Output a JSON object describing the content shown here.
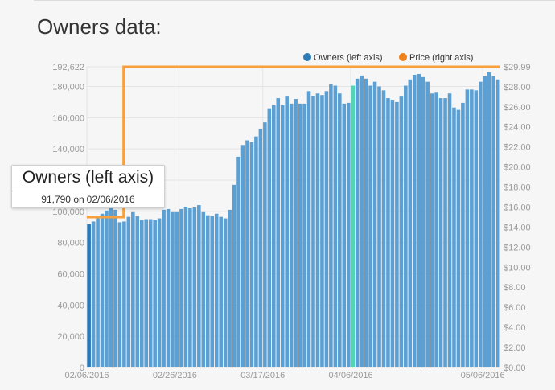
{
  "page": {
    "title": "Owners data:"
  },
  "tooltip": {
    "title": "Owners (left axis)",
    "value": "91,790",
    "connector": "on",
    "date": "02/06/2016"
  },
  "colors": {
    "bar": "#5b9fd3",
    "bar_dark": "#2e78b7",
    "bar_highlight": "#50d6b6",
    "price_line": "#f7a03c",
    "legend_owners": "#2c7bb6",
    "legend_price": "#f0821d",
    "grid": "#e4e4e4",
    "axis_text": "#9a9a9a"
  },
  "chart_data": {
    "type": "bar",
    "legend": {
      "position": "top-right",
      "entries": [
        "Owners (left axis)",
        "Price (right axis)"
      ]
    },
    "grid": true,
    "x": {
      "start": "02/06/2016",
      "end": "05/06/2016",
      "tick_labels": [
        "02/06/2016",
        "02/26/2016",
        "03/17/2016",
        "04/06/2016",
        "05/06/2016"
      ],
      "tick_index": [
        0,
        20,
        40,
        60,
        90
      ]
    },
    "left_axis": {
      "ylim": [
        0,
        192622
      ],
      "tick_values": [
        0,
        20000,
        40000,
        60000,
        80000,
        100000,
        120000,
        140000,
        160000,
        180000,
        192622
      ],
      "tick_labels": [
        "0",
        "20,000",
        "40,000",
        "60,000",
        "80,000",
        "100,000",
        "120,000",
        "140,000",
        "160,000",
        "180,000",
        "192,622"
      ]
    },
    "right_axis": {
      "ylim": [
        0,
        29.99
      ],
      "tick_values": [
        0,
        2,
        4,
        6,
        8,
        10,
        12,
        14,
        16,
        18,
        20,
        22,
        24,
        26,
        28,
        29.99
      ],
      "tick_labels": [
        "$0.00",
        "$2.00",
        "$4.00",
        "$6.00",
        "$8.00",
        "$10.00",
        "$12.00",
        "$14.00",
        "$16.00",
        "$18.00",
        "$20.00",
        "$22.00",
        "$24.00",
        "$26.00",
        "$28.00",
        "$29.99"
      ]
    },
    "series": [
      {
        "name": "Owners (left axis)",
        "type": "bar",
        "axis": "left",
        "highlight_index": 60,
        "selected_index": 0,
        "values": [
          91790,
          93500,
          96000,
          98500,
          100500,
          102000,
          101000,
          93000,
          93500,
          96500,
          99500,
          97000,
          94500,
          95000,
          95000,
          94500,
          95500,
          101000,
          101500,
          99500,
          99500,
          101500,
          103000,
          102000,
          102500,
          104000,
          99500,
          97500,
          97000,
          98500,
          96500,
          95500,
          101000,
          117000,
          135000,
          142500,
          145500,
          144500,
          148000,
          153000,
          157000,
          166000,
          168000,
          172500,
          168000,
          173500,
          169000,
          172000,
          169000,
          169000,
          177000,
          174000,
          175500,
          174500,
          177000,
          181500,
          180500,
          175500,
          169000,
          169500,
          180500,
          185000,
          187000,
          185000,
          180500,
          183000,
          180000,
          177500,
          172500,
          171500,
          170000,
          173500,
          180500,
          184500,
          187500,
          188000,
          186000,
          183000,
          175500,
          176000,
          172500,
          172500,
          175500,
          166500,
          165000,
          169500,
          178000,
          178000,
          177500,
          183000,
          186500,
          189000,
          186500,
          184500
        ]
      },
      {
        "name": "Price (right axis)",
        "type": "line",
        "axis": "right",
        "points": [
          [
            "02/06/2016",
            14.99
          ],
          [
            "02/13/2016",
            14.99
          ],
          [
            "02/14/2016",
            29.99
          ],
          [
            "05/06/2016",
            29.99
          ]
        ]
      }
    ]
  }
}
